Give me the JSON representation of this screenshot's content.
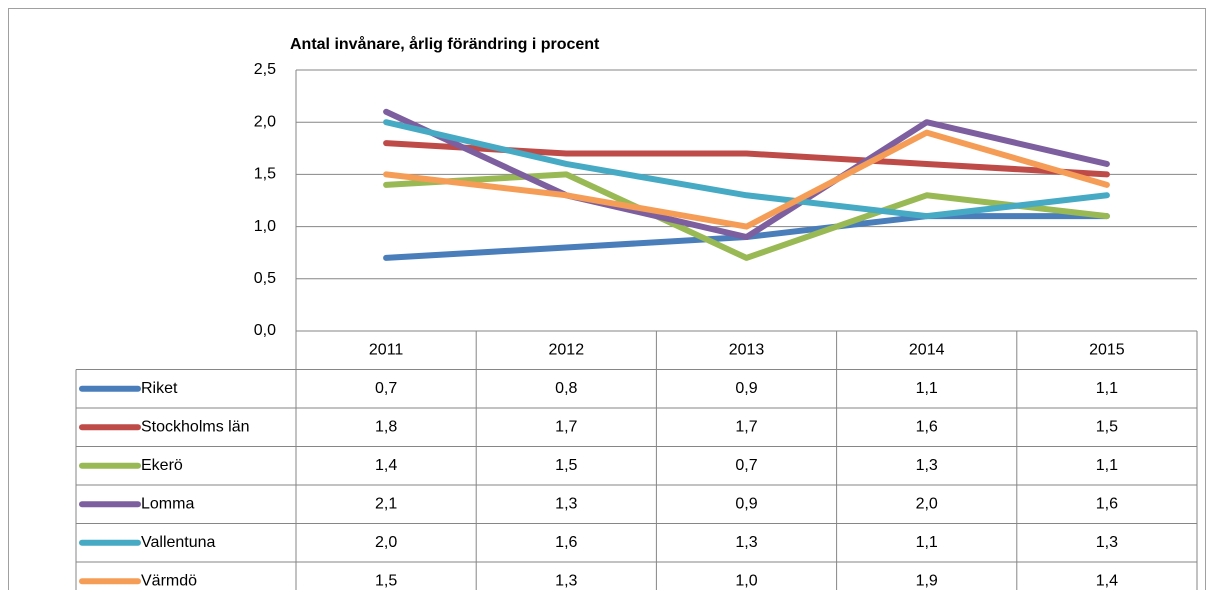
{
  "chart_data": {
    "type": "line",
    "title": "Antal invånare, årlig förändring i procent",
    "categories": [
      "2011",
      "2012",
      "2013",
      "2014",
      "2015"
    ],
    "series": [
      {
        "name": "Riket",
        "color": "#4a7ebb",
        "values": [
          0.7,
          0.8,
          0.9,
          1.1,
          1.1
        ],
        "value_labels": [
          "0,7",
          "0,8",
          "0,9",
          "1,1",
          "1,1"
        ]
      },
      {
        "name": "Stockholms län",
        "color": "#be4b48",
        "values": [
          1.8,
          1.7,
          1.7,
          1.6,
          1.5
        ],
        "value_labels": [
          "1,8",
          "1,7",
          "1,7",
          "1,6",
          "1,5"
        ]
      },
      {
        "name": "Ekerö",
        "color": "#98b954",
        "values": [
          1.4,
          1.5,
          0.7,
          1.3,
          1.1
        ],
        "value_labels": [
          "1,4",
          "1,5",
          "0,7",
          "1,3",
          "1,1"
        ]
      },
      {
        "name": "Lomma",
        "color": "#7d5fa0",
        "values": [
          2.1,
          1.3,
          0.9,
          2.0,
          1.6
        ],
        "value_labels": [
          "2,1",
          "1,3",
          "0,9",
          "2,0",
          "1,6"
        ]
      },
      {
        "name": "Vallentuna",
        "color": "#46aac5",
        "values": [
          2.0,
          1.6,
          1.3,
          1.1,
          1.3
        ],
        "value_labels": [
          "2,0",
          "1,6",
          "1,3",
          "1,1",
          "1,3"
        ]
      },
      {
        "name": "Värmdö",
        "color": "#f59d56",
        "values": [
          1.5,
          1.3,
          1.0,
          1.9,
          1.4
        ],
        "value_labels": [
          "1,5",
          "1,3",
          "1,0",
          "1,9",
          "1,4"
        ]
      }
    ],
    "ylim": [
      0,
      2.5
    ],
    "yticks": [
      {
        "value": 0,
        "label": "0,0"
      },
      {
        "value": 0.5,
        "label": "0,5"
      },
      {
        "value": 1,
        "label": "1,0"
      },
      {
        "value": 1.5,
        "label": "1,5"
      },
      {
        "value": 2,
        "label": "2,0"
      },
      {
        "value": 2.5,
        "label": "2,5"
      }
    ],
    "grid": true
  }
}
